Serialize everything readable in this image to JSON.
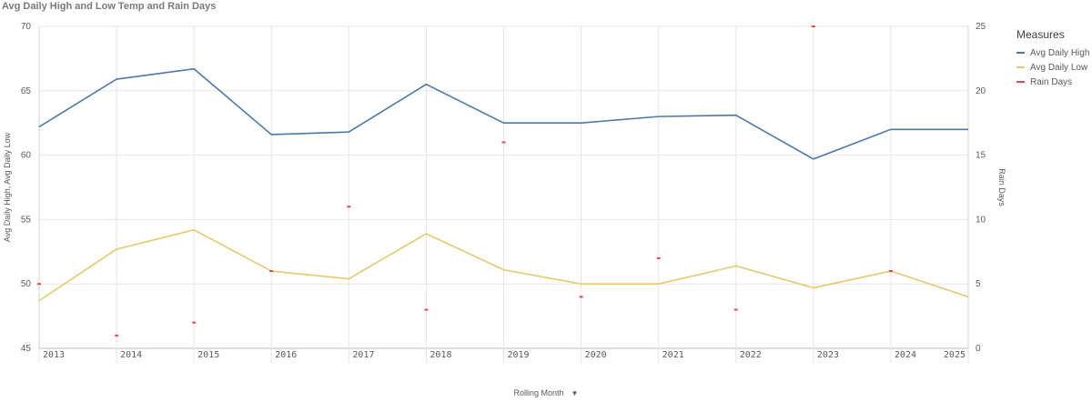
{
  "chart_data": {
    "type": "line",
    "title": "Avg Daily High and Low Temp and Rain Days",
    "xlabel": "Rolling Month",
    "ylabel": "Avg Daily High, Avg Daily Low",
    "y2label": "Rain Days",
    "x": [
      "2013",
      "2014",
      "2015",
      "2016",
      "2017",
      "2018",
      "2019",
      "2020",
      "2021",
      "2022",
      "2023",
      "2024",
      "2025"
    ],
    "ylim": [
      45,
      70
    ],
    "yticks": [
      45,
      50,
      55,
      60,
      65,
      70
    ],
    "y2lim": [
      0,
      25
    ],
    "y2ticks": [
      0,
      5,
      10,
      15,
      20,
      25
    ],
    "grid": true,
    "legend_position": "right",
    "legend_title": "Measures",
    "series": [
      {
        "name": "Avg Daily High",
        "axis": "left",
        "style": "line",
        "color": "#4e79a7",
        "values": [
          62.2,
          65.9,
          66.7,
          61.6,
          61.8,
          65.5,
          62.5,
          62.5,
          63.0,
          63.1,
          59.7,
          62.0,
          62.0
        ]
      },
      {
        "name": "Avg Daily Low",
        "axis": "left",
        "style": "line",
        "color": "#e3c96f",
        "values": [
          48.7,
          52.7,
          54.2,
          51.0,
          50.4,
          53.9,
          51.1,
          50.0,
          50.0,
          51.4,
          49.7,
          51.0,
          49.0
        ]
      },
      {
        "name": "Rain Days",
        "axis": "right",
        "style": "marker",
        "color": "#e04a55",
        "values": [
          5,
          1,
          2,
          6,
          11,
          3,
          16,
          4,
          7,
          3,
          25,
          6,
          null
        ]
      }
    ]
  },
  "ui": {
    "dropdown_icon": "caret-down-icon"
  }
}
